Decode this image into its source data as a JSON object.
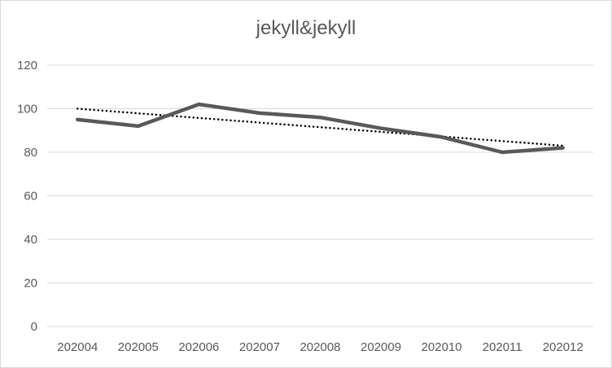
{
  "chart_data": {
    "type": "line",
    "title": "jekyll&jekyll",
    "xlabel": "",
    "ylabel": "",
    "categories": [
      "202004",
      "202005",
      "202006",
      "202007",
      "202008",
      "202009",
      "202010",
      "202011",
      "202012"
    ],
    "series": [
      {
        "values": [
          95,
          92,
          102,
          98,
          96,
          91,
          87,
          80,
          82
        ],
        "color": "#595959",
        "style": "solid"
      }
    ],
    "trendline": {
      "type": "linear",
      "start": 100,
      "end": 83,
      "color": "#000000",
      "style": "dotted"
    },
    "y_ticks": [
      0,
      20,
      40,
      60,
      80,
      100,
      120
    ],
    "ylim": [
      0,
      120
    ],
    "grid": true,
    "legend": "none"
  }
}
